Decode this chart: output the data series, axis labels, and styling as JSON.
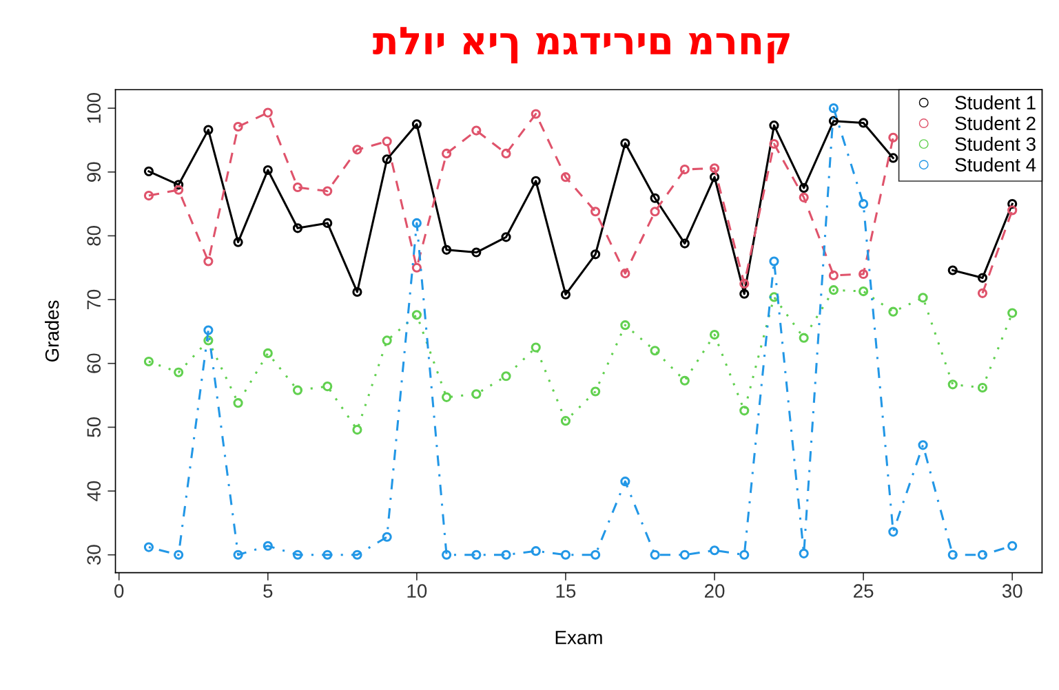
{
  "chart_data": {
    "type": "line",
    "xlabel": "Exam",
    "ylabel": "Grades",
    "x": [
      1,
      2,
      3,
      4,
      5,
      6,
      7,
      8,
      9,
      10,
      11,
      12,
      13,
      14,
      15,
      16,
      17,
      18,
      19,
      20,
      21,
      22,
      23,
      24,
      25,
      26,
      27,
      28,
      29,
      30
    ],
    "xlim": [
      -0.12,
      31.0
    ],
    "xticks": [
      0,
      5,
      10,
      15,
      20,
      25,
      30
    ],
    "ylim": [
      27.2,
      102.9
    ],
    "yticks": [
      30,
      40,
      50,
      60,
      70,
      80,
      90,
      100
    ],
    "marker": "circle",
    "legend": "top right",
    "annotations": [
      "תלוי איך מגדירים מרחק"
    ],
    "series": [
      {
        "name": "Student 1",
        "color": "#000000",
        "line_style": "solid",
        "values": [
          90.1,
          88,
          96.6,
          79.0,
          90.3,
          81.2,
          82.0,
          71.2,
          92.0,
          97.5,
          77.8,
          77.4,
          79.8,
          88.6,
          70.8,
          77.1,
          94.5,
          85.9,
          78.8,
          89.2,
          70.9,
          97.3,
          87.5,
          98.0,
          97.7,
          92.2,
          null,
          74.6,
          73.4,
          85
        ]
      },
      {
        "name": "Student 2",
        "color": "#df536b",
        "line_style": "dashed",
        "values": [
          86.3,
          87.2,
          76.0,
          97.1,
          99.3,
          87.6,
          87.0,
          93.5,
          94.8,
          75.0,
          92.9,
          96.5,
          92.9,
          99.1,
          89.2,
          83.8,
          74.1,
          83.8,
          90.4,
          90.6,
          72.5,
          94.4,
          86,
          73.8,
          74.0,
          95.4,
          null,
          null,
          71.0,
          84
        ]
      },
      {
        "name": "Student 3",
        "color": "#61d04f",
        "line_style": "dotted",
        "values": [
          60.3,
          58.6,
          63.6,
          53.8,
          61.6,
          55.8,
          56.4,
          49.6,
          63.6,
          67.6,
          54.7,
          55.2,
          58,
          62.5,
          51.0,
          55.6,
          66,
          62.0,
          57.3,
          64.5,
          52.6,
          70.4,
          64.0,
          71.5,
          71.3,
          68.1,
          70.3,
          56.7,
          56.2,
          67.9
        ]
      },
      {
        "name": "Student 4",
        "color": "#2297e6",
        "line_style": "dashdot",
        "values": [
          31.2,
          30,
          65.2,
          30.0,
          31.4,
          30,
          30,
          30,
          32.8,
          82.0,
          30,
          30,
          30,
          30.6,
          30,
          30,
          41.5,
          30,
          30,
          30.7,
          30,
          76.0,
          30.2,
          100,
          85.0,
          33.6,
          47.2,
          30,
          30,
          31.4
        ]
      }
    ]
  }
}
